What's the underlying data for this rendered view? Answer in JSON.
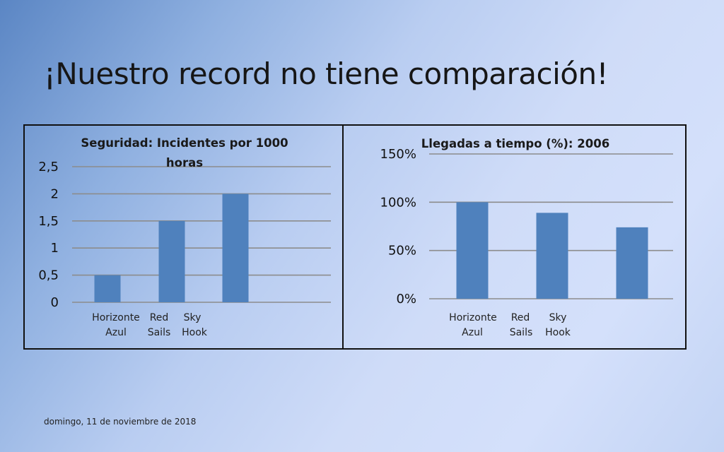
{
  "slide": {
    "title": "¡Nuestro record no tiene comparación!",
    "footer": "domingo, 11 de noviembre de 2018"
  },
  "colors": {
    "bar": "#4f81bd",
    "grid": "#8c8c8c"
  },
  "chart_data": [
    {
      "type": "bar",
      "title_lines": [
        "Seguridad: Incidentes por 1000",
        "horas"
      ],
      "categories": [
        [
          "Horizonte",
          "Azul"
        ],
        [
          "Red",
          "Sails"
        ],
        [
          "Sky",
          "Hook"
        ]
      ],
      "values": [
        0.5,
        1.5,
        2
      ],
      "ylim": [
        0,
        2.5
      ],
      "yticks": [
        0,
        0.5,
        1,
        1.5,
        2,
        2.5
      ],
      "ytick_labels": [
        "0",
        "0,5",
        "1",
        "1,5",
        "2",
        "2,5"
      ],
      "grid": true
    },
    {
      "type": "bar",
      "title_lines": [
        "Llegadas a tiempo (%): 2006"
      ],
      "categories": [
        [
          "Horizonte",
          "Azul"
        ],
        [
          "Red",
          "Sails"
        ],
        [
          "Sky",
          "Hook"
        ]
      ],
      "values": [
        100,
        89,
        74
      ],
      "ylim": [
        0,
        150
      ],
      "yticks": [
        0,
        50,
        100,
        150
      ],
      "ytick_labels": [
        "0%",
        "50%",
        "100%",
        "150%"
      ],
      "grid": true
    }
  ]
}
